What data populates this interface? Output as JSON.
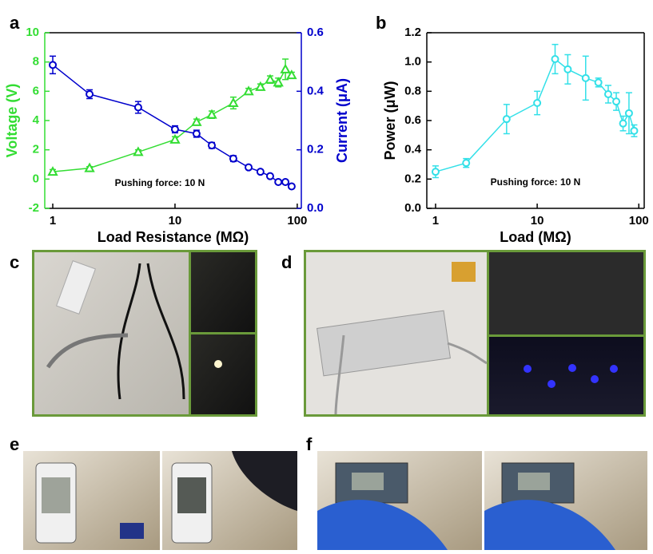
{
  "panel_labels": [
    "a",
    "b",
    "c",
    "d",
    "e",
    "f"
  ],
  "chart_data": [
    {
      "type": "line",
      "x_scale": "log",
      "xlabel": "Load Resistance (MΩ)",
      "ylabel": "Voltage (V)",
      "y2label": "Current (μA)",
      "annotation": "Pushing force: 10 N",
      "x": [
        1,
        2,
        5,
        10,
        15,
        20,
        30,
        40,
        50,
        60,
        70,
        80,
        90
      ],
      "xlim": [
        0.86,
        108
      ],
      "xticks": [
        1,
        10,
        100
      ],
      "ylim": [
        -2,
        10
      ],
      "yticks": [
        -2,
        0,
        2,
        4,
        6,
        8,
        10
      ],
      "ycolor": "#33dd33",
      "y2lim": [
        0,
        0.6
      ],
      "y2ticks": [
        {
          "value": 0,
          "label": "0.0"
        },
        0.2,
        0.4,
        0.6
      ],
      "y2color": "#0000cc",
      "series": [
        {
          "color": "#33dd33",
          "marker": "triangle",
          "values": [
            0.5,
            0.75,
            1.85,
            2.7,
            3.9,
            4.4,
            5.2,
            6.0,
            6.3,
            6.8,
            6.6,
            7.5,
            7.1
          ],
          "errors": [
            0.15,
            0.1,
            0.15,
            0.2,
            0.2,
            0.25,
            0.4,
            0.2,
            0.2,
            0.25,
            0.3,
            0.7,
            0.2
          ]
        },
        {
          "color": "#0000cc",
          "marker": "circle",
          "axis": "y2",
          "values": [
            0.49,
            0.39,
            0.345,
            0.27,
            0.255,
            0.215,
            0.17,
            0.14,
            0.125,
            0.11,
            0.09,
            0.09,
            0.075
          ],
          "errors": [
            0.03,
            0.015,
            0.02,
            0.012,
            0.012,
            0.01,
            0.01,
            0.006,
            0.006,
            0.006,
            0.006,
            0.006,
            0.006
          ]
        }
      ]
    },
    {
      "type": "line",
      "x_scale": "log",
      "xlabel": "Load (MΩ)",
      "ylabel": "Power (μW)",
      "annotation": "Pushing force: 10 N",
      "x": [
        1,
        2,
        5,
        10,
        15,
        20,
        30,
        40,
        50,
        60,
        70,
        80,
        90
      ],
      "xlim": [
        0.82,
        113
      ],
      "xticks": [
        1,
        10,
        100
      ],
      "ylim": [
        0,
        1.2
      ],
      "yticks": [
        {
          "value": 0,
          "label": "0.0"
        },
        0.2,
        0.4,
        0.6,
        0.8,
        {
          "value": 1,
          "label": "1.0"
        },
        1.2
      ],
      "ycolor": "#000000",
      "series": [
        {
          "color": "#33e0e8",
          "marker": "circle",
          "values": [
            0.25,
            0.31,
            0.61,
            0.72,
            1.02,
            0.95,
            0.89,
            0.86,
            0.78,
            0.73,
            0.58,
            0.65,
            0.53
          ],
          "errors": [
            0.04,
            0.03,
            0.1,
            0.08,
            0.1,
            0.1,
            0.15,
            0.03,
            0.06,
            0.06,
            0.05,
            0.14,
            0.04
          ]
        }
      ]
    }
  ]
}
